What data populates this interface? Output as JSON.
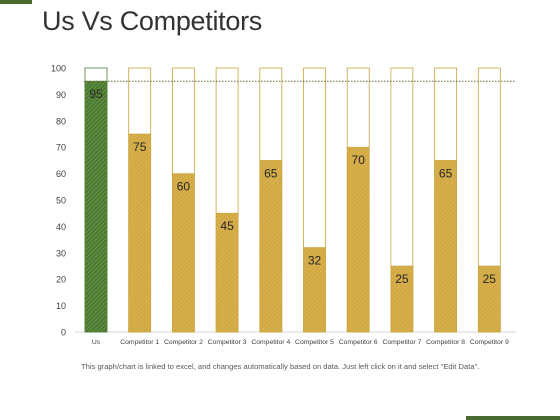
{
  "page": {
    "title": "Us Vs Competitors",
    "footnote": "This graph/chart is linked to excel, and changes automatically based on data. Just left click on it and select \"Edit Data\"."
  },
  "colors": {
    "us_bar": "#4a7a32",
    "competitor_bar": "#d7b04d",
    "bar_outline": "#c8a43a",
    "target_line": "#5e6b3a",
    "accent": "#4a6b2f"
  },
  "chart_data": {
    "type": "bar",
    "categories": [
      "Us",
      "Competitor 1",
      "Competitor 2",
      "Competitor 3",
      "Competitor 4",
      "Competitor 5",
      "Competitor 6",
      "Competitor 7",
      "Competitor 8",
      "Competitor 9"
    ],
    "values": [
      95,
      75,
      60,
      45,
      65,
      32,
      70,
      25,
      65,
      25
    ],
    "data_labels": [
      "95",
      "75",
      "60",
      "45",
      "65",
      "32",
      "70",
      "25",
      "65",
      "25"
    ],
    "max_outline": 100,
    "reference_line": 95,
    "ylim": [
      0,
      100
    ],
    "yticks": [
      "0",
      "10",
      "20",
      "30",
      "40",
      "50",
      "60",
      "70",
      "80",
      "90",
      "100"
    ],
    "title": "",
    "xlabel": "",
    "ylabel": "",
    "grid": false,
    "legend": "none"
  }
}
